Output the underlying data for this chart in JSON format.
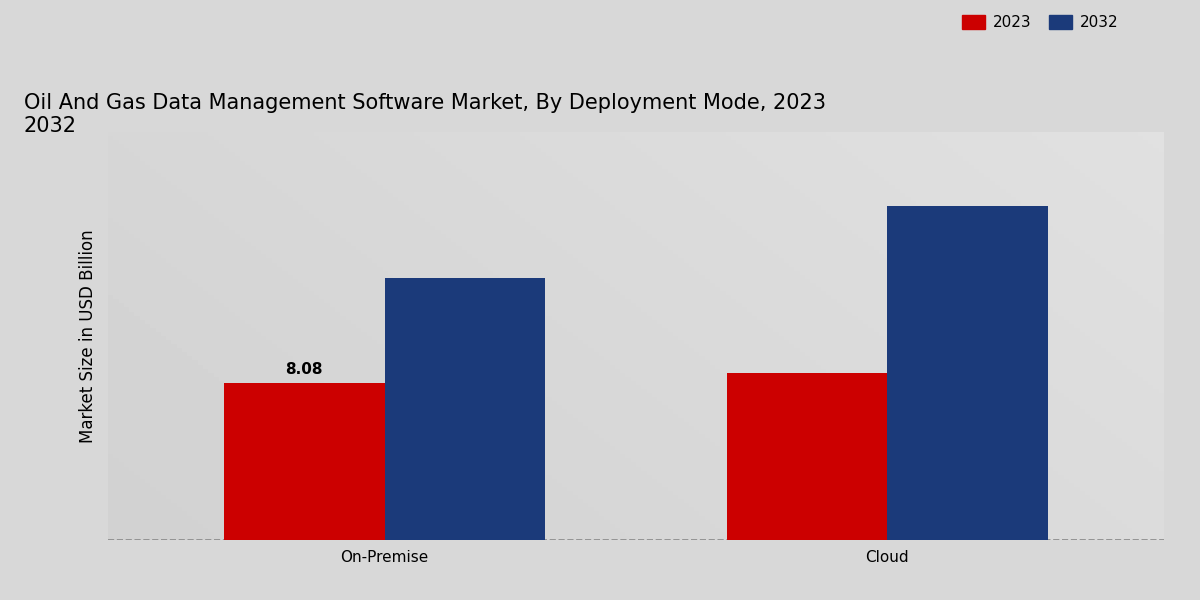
{
  "title": "Oil And Gas Data Management Software Market, By Deployment Mode, 2023\n2032",
  "ylabel": "Market Size in USD Billion",
  "categories": [
    "On-Premise",
    "Cloud"
  ],
  "values_2023": [
    8.08,
    8.6
  ],
  "values_2032": [
    13.5,
    17.2
  ],
  "label_2023": "2023",
  "label_2032": "2032",
  "color_2023": "#CC0000",
  "color_2032": "#1B3A7A",
  "annotation_onpremise_2023": "8.08",
  "bar_width": 0.32,
  "bg_color": "#D8D8D8",
  "title_fontsize": 15,
  "axis_label_fontsize": 12,
  "tick_fontsize": 11,
  "legend_fontsize": 11,
  "footer_color": "#CC0000",
  "ylim_max": 21
}
